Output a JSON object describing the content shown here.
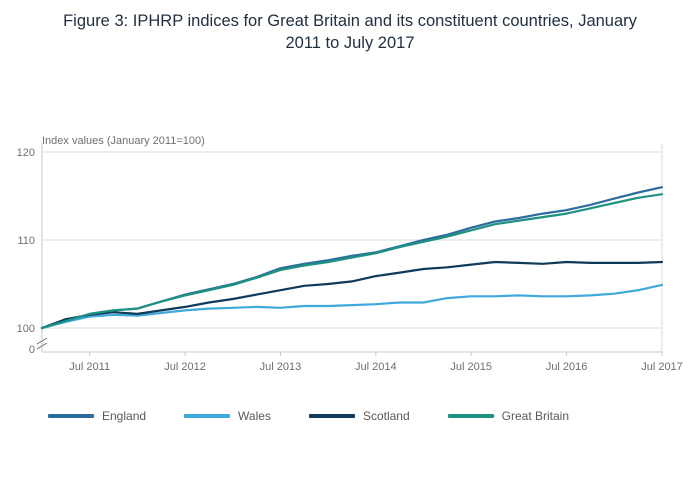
{
  "figure": {
    "title": "Figure 3: IPHRP indices for Great Britain and its constituent countries, January 2011 to July 2017"
  },
  "chart_data": {
    "type": "line",
    "title": "Figure 3: IPHRP indices for Great Britain and its constituent countries, January 2011 to July 2017",
    "ylabel": "Index values (January 2011=100)",
    "xlabel": "",
    "x_tick_labels": [
      "Jul 2011",
      "Jul 2012",
      "Jul 2013",
      "Jul 2014",
      "Jul 2015",
      "Jul 2016",
      "Jul 2017"
    ],
    "x_tick_months": [
      6,
      18,
      30,
      42,
      54,
      66,
      78
    ],
    "x_range_months": [
      0,
      78
    ],
    "y_ticks": [
      100,
      110,
      120
    ],
    "y_zero_label": "0",
    "axis_break": true,
    "ylim_display": [
      100,
      120
    ],
    "grid": "horizontal",
    "legend_position": "bottom",
    "x_months": [
      0,
      3,
      6,
      9,
      12,
      15,
      18,
      21,
      24,
      27,
      30,
      33,
      36,
      39,
      42,
      45,
      48,
      51,
      54,
      57,
      60,
      63,
      66,
      69,
      72,
      75,
      78
    ],
    "series": [
      {
        "name": "England",
        "color": "#2d6d9d",
        "values": [
          100,
          100.8,
          101.6,
          102.0,
          102.2,
          103.0,
          103.8,
          104.4,
          105.0,
          105.8,
          106.8,
          107.3,
          107.7,
          108.2,
          108.6,
          109.3,
          110.0,
          110.6,
          111.4,
          112.1,
          112.5,
          113.0,
          113.4,
          114.0,
          114.7,
          115.4,
          116.0
        ]
      },
      {
        "name": "Wales",
        "color": "#3fa9dc",
        "values": [
          100,
          100.7,
          101.3,
          101.5,
          101.4,
          101.7,
          102.0,
          102.2,
          102.3,
          102.4,
          102.3,
          102.5,
          102.5,
          102.6,
          102.7,
          102.9,
          102.9,
          103.4,
          103.6,
          103.6,
          103.7,
          103.6,
          103.6,
          103.7,
          103.9,
          104.3,
          104.9
        ]
      },
      {
        "name": "Scotland",
        "color": "#0f3a5a",
        "values": [
          100,
          101.0,
          101.5,
          101.8,
          101.6,
          102.0,
          102.4,
          102.9,
          103.3,
          103.8,
          104.3,
          104.8,
          105.0,
          105.3,
          105.9,
          106.3,
          106.7,
          106.9,
          107.2,
          107.5,
          107.4,
          107.3,
          107.5,
          107.4,
          107.4,
          107.4,
          107.5
        ]
      },
      {
        "name": "Great Britain",
        "color": "#1f9182",
        "values": [
          100,
          100.8,
          101.6,
          102.0,
          102.2,
          103.0,
          103.7,
          104.3,
          104.9,
          105.7,
          106.6,
          107.1,
          107.5,
          108.0,
          108.5,
          109.2,
          109.8,
          110.4,
          111.1,
          111.8,
          112.2,
          112.6,
          113.0,
          113.6,
          114.2,
          114.8,
          115.2
        ]
      }
    ],
    "colors": {
      "grid": "#d9d9d9",
      "axis": "#c9c9c9",
      "tick_text": "#6f6f6f",
      "legend_text": "#595959",
      "title_text": "#203040"
    }
  }
}
